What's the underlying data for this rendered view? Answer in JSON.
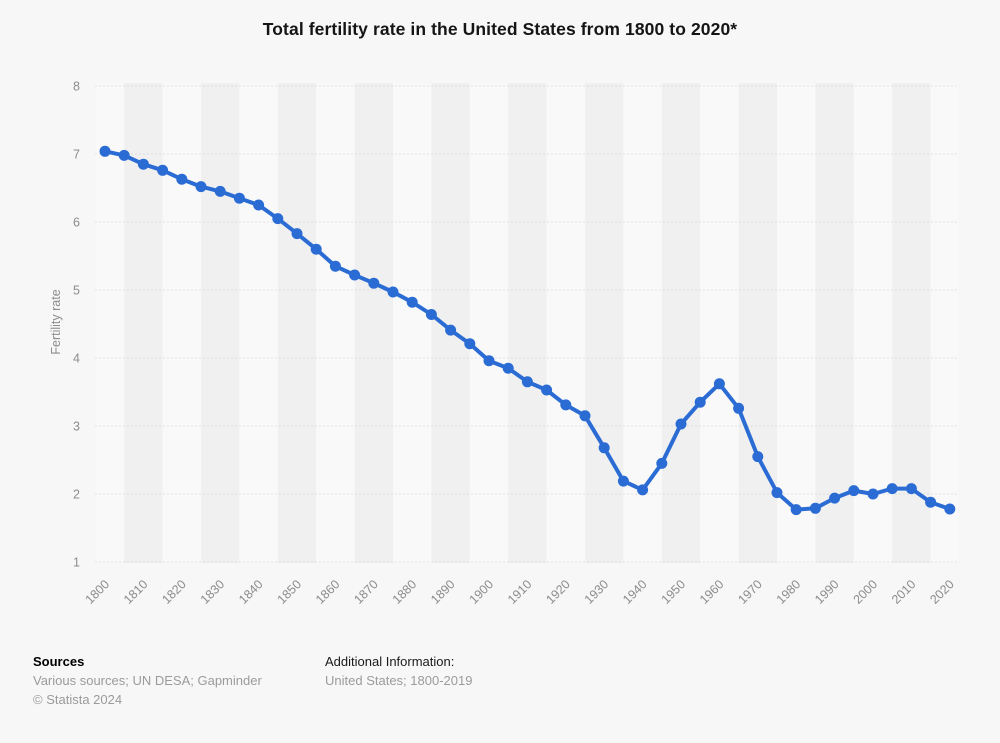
{
  "title": "Total fertility rate in the United States from 1800 to 2020*",
  "colors": {
    "line": "#2b6cd4",
    "background": "#f7f7f7",
    "stripe_dark": "#f0f0f1",
    "stripe_light": "#f9f9f9",
    "gridline": "#c9c9c9",
    "axis_text": "#8c8c8c"
  },
  "footer": {
    "sources_label": "Sources",
    "sources_value": "Various sources; UN DESA; Gapminder",
    "copyright": "© Statista 2024",
    "additional_label": "Additional Information:",
    "additional_value": "United States; 1800-2019"
  },
  "chart_data": {
    "type": "line",
    "title": "Total fertility rate in the United States from 1800 to 2020*",
    "xlabel": "",
    "ylabel": "Fertility rate",
    "ylim": [
      1,
      8
    ],
    "yticks": [
      1,
      2,
      3,
      4,
      5,
      6,
      7,
      8
    ],
    "grid": "horizontal-dotted",
    "legend_position": "none",
    "marker": "circle",
    "x": [
      1800,
      1805,
      1810,
      1815,
      1820,
      1825,
      1830,
      1835,
      1840,
      1845,
      1850,
      1855,
      1860,
      1865,
      1870,
      1875,
      1880,
      1885,
      1890,
      1895,
      1900,
      1905,
      1910,
      1915,
      1920,
      1925,
      1930,
      1935,
      1940,
      1945,
      1950,
      1955,
      1960,
      1965,
      1970,
      1975,
      1980,
      1985,
      1990,
      1995,
      2000,
      2005,
      2010,
      2015,
      2020
    ],
    "values": [
      7.04,
      6.98,
      6.85,
      6.76,
      6.63,
      6.52,
      6.45,
      6.35,
      6.25,
      6.05,
      5.83,
      5.6,
      5.35,
      5.22,
      5.1,
      4.97,
      4.82,
      4.64,
      4.41,
      4.21,
      3.96,
      3.85,
      3.65,
      3.53,
      3.31,
      3.15,
      2.68,
      2.19,
      2.06,
      2.45,
      3.03,
      3.35,
      3.62,
      3.26,
      2.55,
      2.02,
      1.77,
      1.79,
      1.94,
      2.05,
      2.0,
      2.08,
      2.08,
      1.88,
      1.78
    ],
    "xtick_labels": [
      "1800",
      "1810",
      "1820",
      "1830",
      "1840",
      "1850",
      "1860",
      "1870",
      "1880",
      "1890",
      "1900",
      "1910",
      "1920",
      "1930",
      "1940",
      "1950",
      "1960",
      "1970",
      "1980",
      "1990",
      "2000",
      "2010",
      "2020"
    ]
  }
}
